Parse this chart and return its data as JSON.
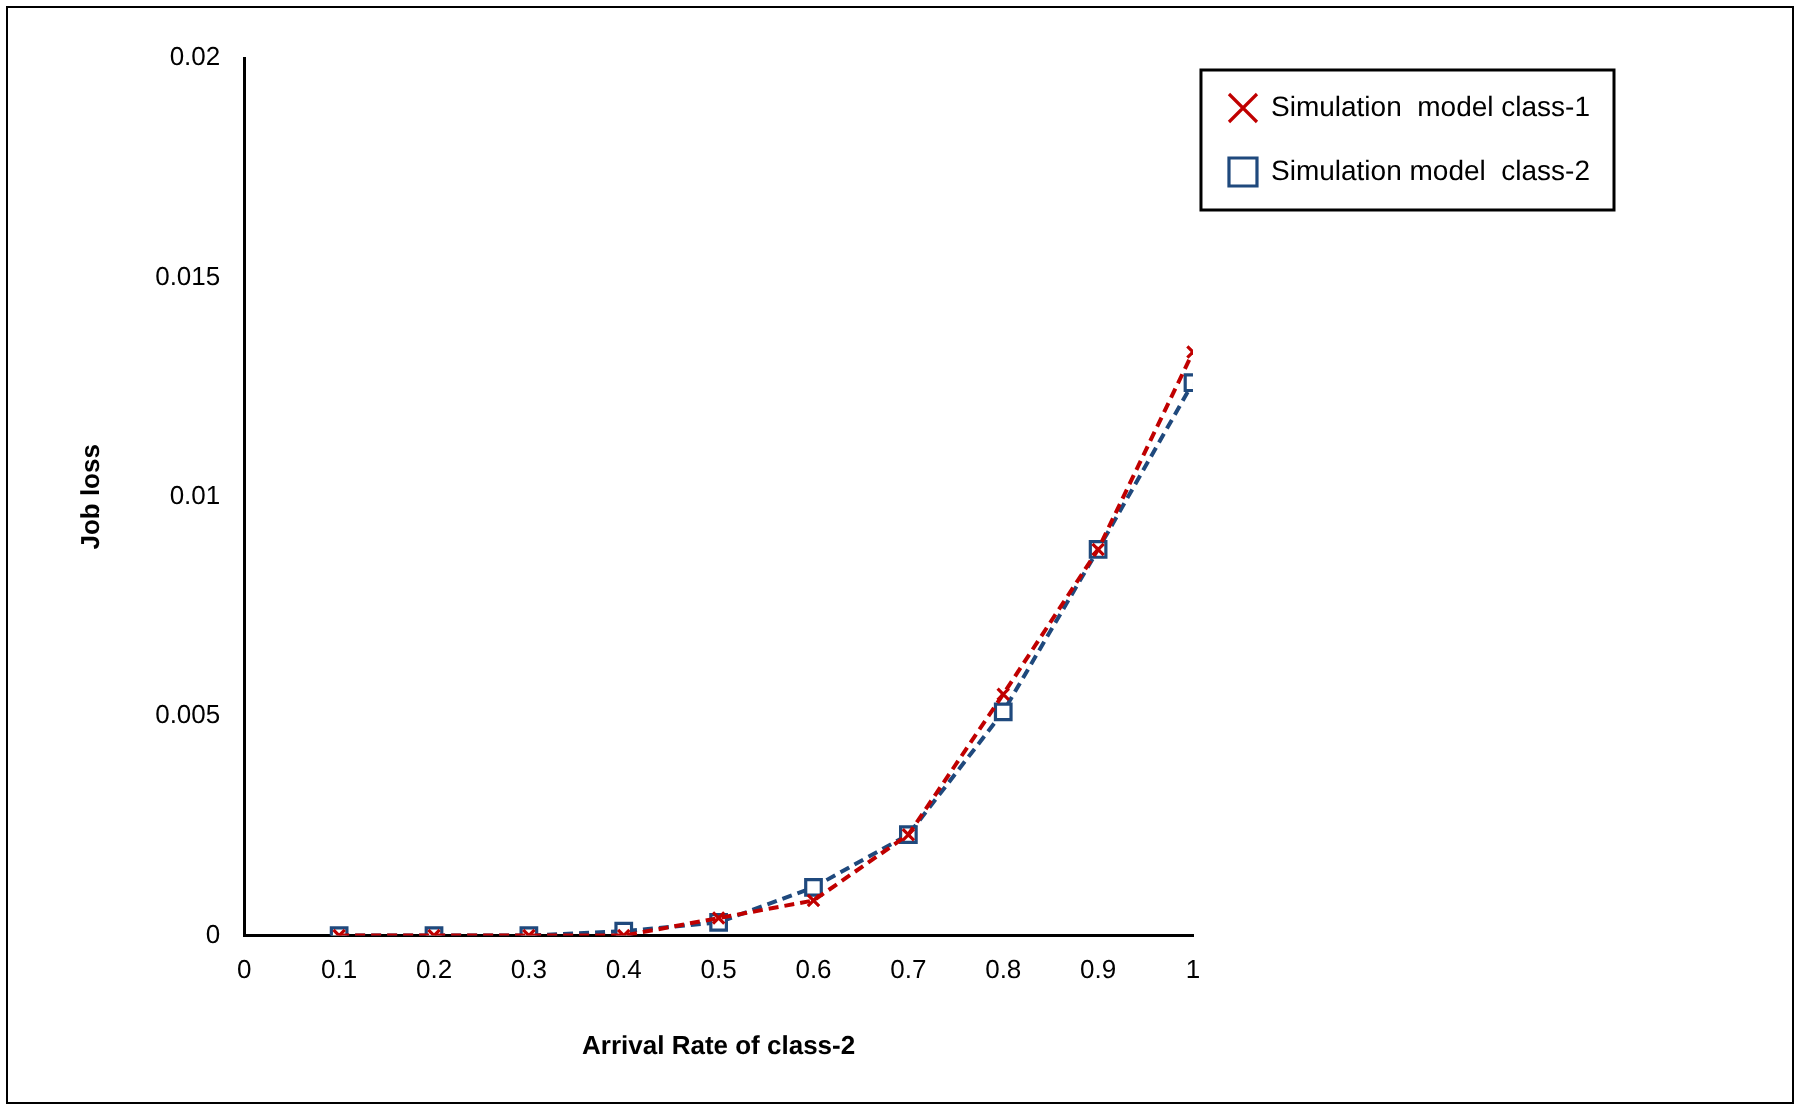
{
  "chart_data": {
    "type": "line",
    "xlabel": "Arrival Rate of class-2",
    "ylabel": "Job loss",
    "x": [
      0.1,
      0.2,
      0.3,
      0.4,
      0.5,
      0.6,
      0.7,
      0.8,
      0.9,
      1
    ],
    "series": [
      {
        "name": "Simulation  model class-1",
        "color": "#c00000",
        "marker": "cross",
        "values": [
          0,
          0,
          0,
          0,
          0.0004,
          0.0008,
          0.0023,
          0.0055,
          0.0088,
          0.0133
        ]
      },
      {
        "name": "Simulation model  class-2",
        "color": "#1f497d",
        "marker": "square",
        "values": [
          0,
          0,
          0,
          0.0001,
          0.0003,
          0.0011,
          0.0023,
          0.0051,
          0.0088,
          0.0126
        ]
      }
    ],
    "xlim": [
      0,
      1
    ],
    "xticks": [
      0,
      0.1,
      0.2,
      0.3,
      0.4,
      0.5,
      0.6,
      0.7,
      0.8,
      0.9,
      1
    ],
    "ylim": [
      0,
      0.02
    ],
    "yticks": [
      0,
      0.005,
      0.01,
      0.015,
      0.02
    ],
    "grid": false,
    "legend": "top right",
    "line_style": "dashed"
  }
}
